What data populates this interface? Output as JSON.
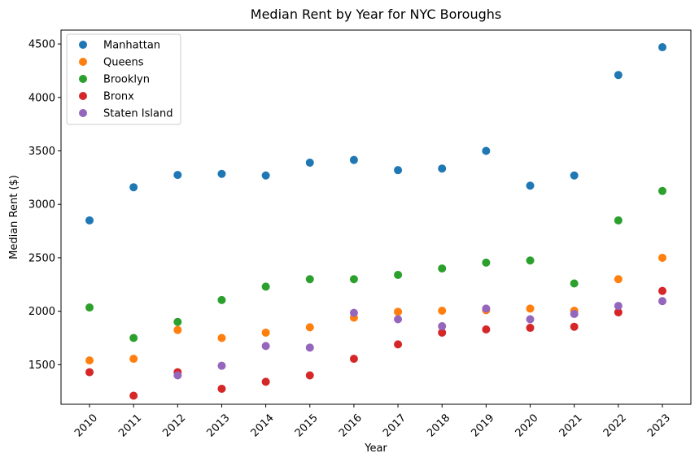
{
  "chart_data": {
    "type": "scatter",
    "title": "Median Rent by Year for NYC Boroughs",
    "xlabel": "Year",
    "ylabel": "Median Rent ($)",
    "x": [
      "2010",
      "2011",
      "2012",
      "2013",
      "2014",
      "2015",
      "2016",
      "2017",
      "2018",
      "2019",
      "2020",
      "2021",
      "2022",
      "2023"
    ],
    "ylim": [
      1130,
      4630
    ],
    "yticks": [
      1500,
      2000,
      2500,
      3000,
      3500,
      4000,
      4500
    ],
    "grid": false,
    "legend_position": "top-left",
    "series": [
      {
        "name": "Manhattan",
        "color": "#1f77b4",
        "values": [
          2850,
          3160,
          3275,
          3285,
          3270,
          3390,
          3415,
          3320,
          3335,
          3500,
          3175,
          3270,
          4210,
          4470
        ]
      },
      {
        "name": "Queens",
        "color": "#ff7f0e",
        "values": [
          1540,
          1555,
          1825,
          1750,
          1800,
          1850,
          1940,
          1995,
          2005,
          2010,
          2025,
          2005,
          2300,
          2500
        ]
      },
      {
        "name": "Brooklyn",
        "color": "#2ca02c",
        "values": [
          2035,
          1750,
          1900,
          2105,
          2230,
          2300,
          2300,
          2340,
          2400,
          2455,
          2475,
          2260,
          2850,
          3125
        ]
      },
      {
        "name": "Bronx",
        "color": "#d62728",
        "values": [
          1430,
          1210,
          1430,
          1275,
          1340,
          1400,
          1555,
          1690,
          1800,
          1830,
          1845,
          1855,
          1990,
          2190
        ]
      },
      {
        "name": "Staten Island",
        "color": "#9467bd",
        "values": [
          null,
          null,
          1400,
          1490,
          1675,
          1660,
          1985,
          1925,
          1860,
          2025,
          1925,
          1975,
          2050,
          2095
        ]
      }
    ]
  }
}
